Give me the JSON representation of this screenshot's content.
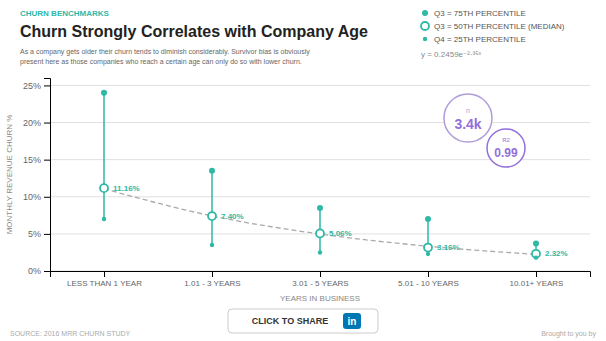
{
  "chart_data": {
    "type": "dot",
    "title": "Churn Strongly Correlates with Company Age",
    "subtitle": "CHURN BENCHMARKS",
    "description": "As a company gets older their churn tends to diminish considerably. Survivor bias is obviously\npresent here as those companies who reach a certain age can only do so with lower churn.",
    "x_label": "YEARS IN BUSINESS",
    "y_label": "MONTHLY REVENUE CHURN %",
    "categories": [
      "LESS THAN 1 YEAR",
      "1.01 - 3 YEARS",
      "3.01 - 5 YEARS",
      "5.01 - 10 YEARS",
      "10.01+ YEARS"
    ],
    "series": [
      {
        "name": "Q3 = 75TH PERCENTILE",
        "color": "#2eb8a6",
        "marker": "circle",
        "values": [
          24.0,
          13.5,
          8.5,
          7.0,
          3.7
        ]
      },
      {
        "name": "Q3 = 50TH PERCENTILE (MEDIAN)",
        "color": "#2eb8a6",
        "marker": "open",
        "values": [
          11.16,
          7.4,
          5.06,
          3.16,
          2.32
        ],
        "data_labels": true,
        "value_labels": [
          "11.16%",
          "7.40%",
          "5.06%",
          "3.16%",
          "2.32%"
        ]
      },
      {
        "name": "Q4 = 25TH PERCENTILE",
        "color": "#2eb8a6",
        "marker": "dot",
        "values": [
          7.0,
          3.5,
          2.5,
          2.3,
          1.8
        ]
      },
      {
        "type": "line",
        "line_style": "dashed",
        "color": "#aaaaaa",
        "values": [
          11.07,
          7.42,
          4.98,
          3.34,
          2.24
        ]
      }
    ],
    "ylim": [
      0,
      26
    ],
    "yticks": [
      {
        "value": 0,
        "label": "0%"
      },
      {
        "value": 5,
        "label": "5%"
      },
      {
        "value": 10,
        "label": "10%"
      },
      {
        "value": 15,
        "label": "15%"
      },
      {
        "value": 20,
        "label": "20%"
      },
      {
        "value": 25,
        "label": "25%"
      }
    ],
    "grid": true,
    "legend": "top-right",
    "annotations": [
      {
        "text": "y = 0.2459e⁻²·³⁵ˣ",
        "color": "#888888"
      },
      {
        "text": "n",
        "color": "#b19cd9"
      },
      {
        "text": "3.4k",
        "color": "#9370db"
      },
      {
        "text": "R2",
        "color": "#9370db"
      },
      {
        "text": "0.99",
        "color": "#9370db"
      },
      {
        "text": "CLICK TO SHARE",
        "color": "#333333"
      },
      {
        "text": "in",
        "color": "#0077b5"
      },
      {
        "text": "SOURCE: 2016 MRR CHURN STUDY",
        "color": "#aaaaaa"
      },
      {
        "text": "Brought to you by",
        "color": "#aaaaaa"
      }
    ]
  }
}
